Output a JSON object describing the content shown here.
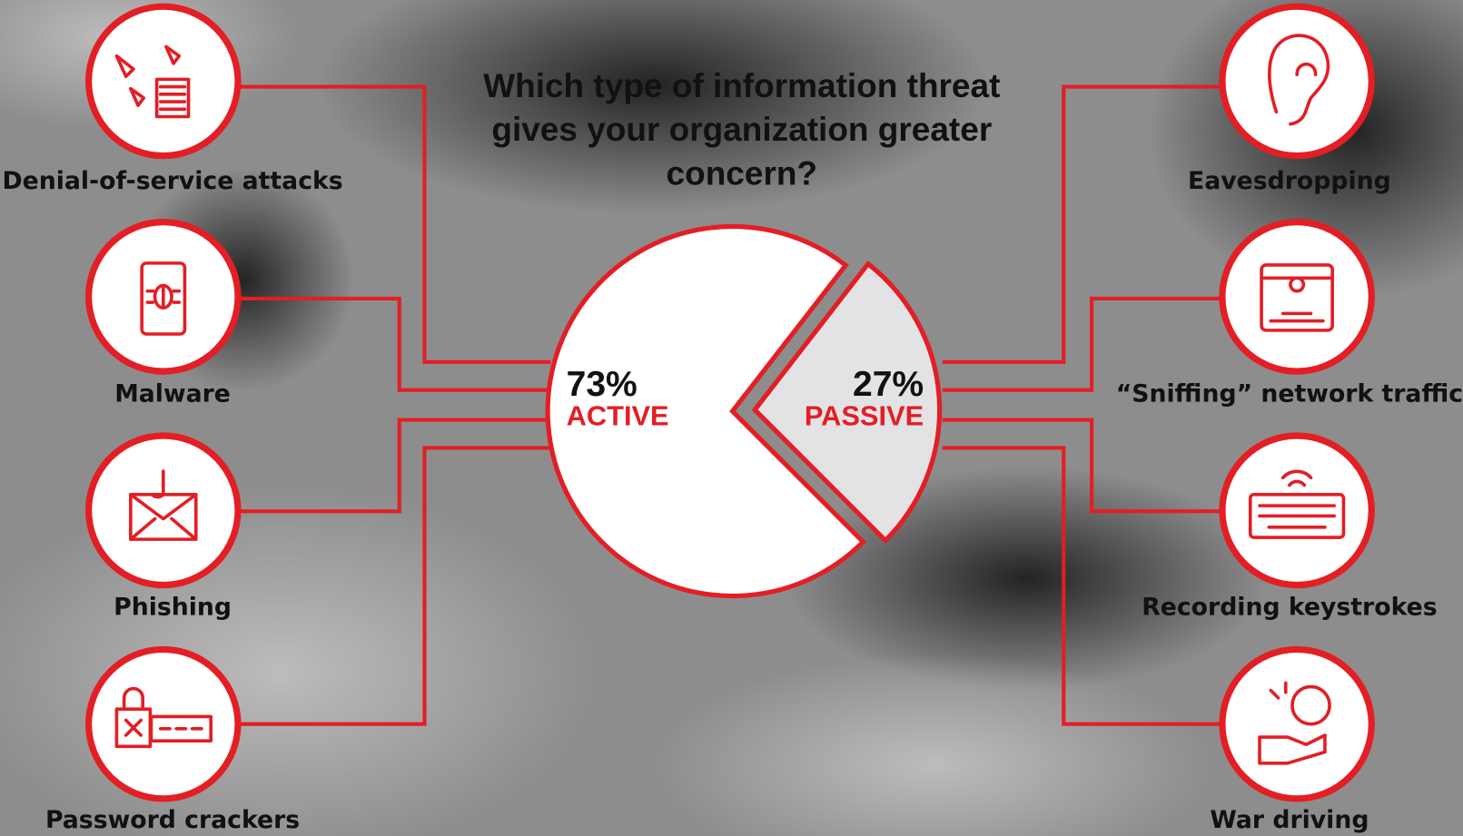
{
  "chart_data": {
    "type": "pie",
    "title": "Which type of information threat gives your organization greater concern?",
    "categories": [
      "ACTIVE",
      "PASSIVE"
    ],
    "values": [
      73,
      27
    ],
    "value_labels": [
      "73%",
      "27%"
    ],
    "colors": [
      "#ffffff",
      "#e3e3e5"
    ],
    "edge_color": "#e31e24"
  },
  "threats": {
    "active": [
      "Denial-of-service attacks",
      "Malware",
      "Phishing",
      "Password crackers"
    ],
    "passive": [
      "Eavesdropping",
      "“Sniffing” network traffic",
      "Recording keystrokes",
      "War driving"
    ]
  }
}
